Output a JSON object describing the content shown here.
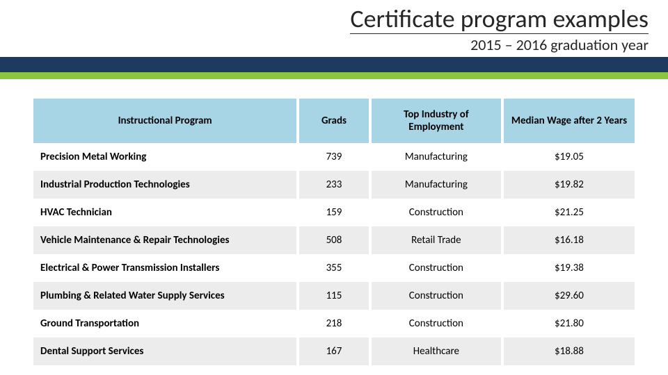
{
  "header": {
    "title": "Certificate program examples",
    "subtitle": "2015 – 2016 graduation year"
  },
  "colors": {
    "navy_band": "#1f3a5f",
    "green_band": "#8cc63f",
    "header_row": "#a8d5e5",
    "row_alt": "#ececec",
    "row_base": "#ffffff",
    "text": "#000000"
  },
  "table": {
    "columns": [
      "Instructional Program",
      "Grads",
      "Top Industry of Employment",
      "Median Wage after 2 Years"
    ],
    "rows": [
      {
        "program": "Precision Metal Working",
        "grads": "739",
        "industry": "Manufacturing",
        "wage": "$19.05"
      },
      {
        "program": "Industrial Production Technologies",
        "grads": "233",
        "industry": "Manufacturing",
        "wage": "$19.82"
      },
      {
        "program": "HVAC Technician",
        "grads": "159",
        "industry": "Construction",
        "wage": "$21.25"
      },
      {
        "program": "Vehicle Maintenance & Repair Technologies",
        "grads": "508",
        "industry": "Retail Trade",
        "wage": "$16.18"
      },
      {
        "program": "Electrical & Power Transmission Installers",
        "grads": "355",
        "industry": "Construction",
        "wage": "$19.38"
      },
      {
        "program": "Plumbing & Related Water Supply Services",
        "grads": "115",
        "industry": "Construction",
        "wage": "$29.60"
      },
      {
        "program": "Ground Transportation",
        "grads": "218",
        "industry": "Construction",
        "wage": "$21.80"
      },
      {
        "program": "Dental Support Services",
        "grads": "167",
        "industry": "Healthcare",
        "wage": "$18.88"
      }
    ]
  }
}
